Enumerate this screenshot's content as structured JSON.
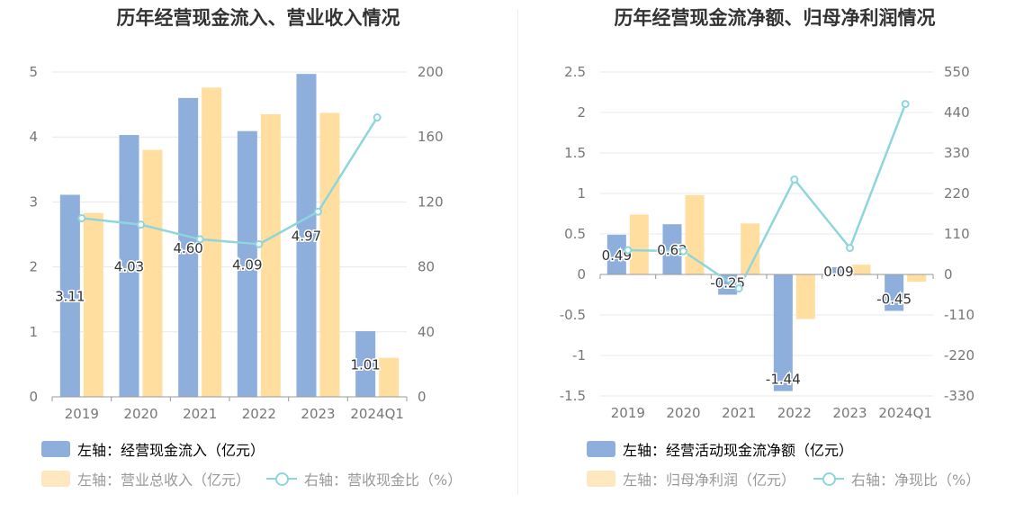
{
  "colors": {
    "bar_primary": "#8eaedb",
    "bar_secondary": "#ffdea0",
    "line": "#8fd5dc",
    "axis_text": "#777777",
    "grid": "#e6e8ee",
    "title": "#333333"
  },
  "chart_data": [
    {
      "type": "bar",
      "title": "历年经营现金流入、营业收入情况",
      "categories": [
        "2019",
        "2020",
        "2021",
        "2022",
        "2023",
        "2024Q1"
      ],
      "left_axis": {
        "ticks": [
          "0",
          "1",
          "2",
          "3",
          "4",
          "5"
        ],
        "ylim": [
          0,
          5
        ]
      },
      "right_axis": {
        "ticks": [
          "0",
          "40",
          "80",
          "120",
          "160",
          "200"
        ],
        "ylim": [
          0,
          200
        ]
      },
      "series": [
        {
          "name": "左轴：经营现金流入（亿元）",
          "axis": "left",
          "kind": "bar",
          "values": [
            3.11,
            4.03,
            4.6,
            4.09,
            4.97,
            1.01
          ],
          "labels": [
            "3.11",
            "4.03",
            "4.60",
            "4.09",
            "4.97",
            "1.01"
          ]
        },
        {
          "name": "左轴：营业总收入（亿元）",
          "axis": "left",
          "kind": "bar",
          "values": [
            2.83,
            3.8,
            4.76,
            4.35,
            4.37,
            0.6
          ]
        },
        {
          "name": "右轴：营收现金比（%）",
          "axis": "right",
          "kind": "line",
          "values": [
            110,
            106,
            97,
            94,
            114,
            172
          ]
        }
      ]
    },
    {
      "type": "bar",
      "title": "历年经营现金流净额、归母净利润情况",
      "categories": [
        "2019",
        "2020",
        "2021",
        "2022",
        "2023",
        "2024Q1"
      ],
      "left_axis": {
        "ticks": [
          "-1.5",
          "-1",
          "-0.5",
          "0",
          "0.5",
          "1",
          "1.5",
          "2",
          "2.5"
        ],
        "ylim": [
          -1.5,
          2.5
        ]
      },
      "right_axis": {
        "ticks": [
          "-330",
          "-220",
          "-110",
          "0",
          "110",
          "220",
          "330",
          "440",
          "550"
        ],
        "ylim": [
          -330,
          550
        ]
      },
      "series": [
        {
          "name": "左轴：经营活动现金流净额（亿元）",
          "axis": "left",
          "kind": "bar",
          "values": [
            0.49,
            0.62,
            -0.25,
            -1.44,
            0.09,
            -0.45
          ],
          "labels": [
            "0.49",
            "0.62",
            "-0.25",
            "-1.44",
            "0.09",
            "-0.45"
          ]
        },
        {
          "name": "左轴：归母净利润（亿元）",
          "axis": "left",
          "kind": "bar",
          "values": [
            0.74,
            0.98,
            0.63,
            -0.55,
            0.12,
            -0.09
          ]
        },
        {
          "name": "右轴：净现比（%）",
          "axis": "right",
          "kind": "line",
          "values": [
            66,
            63,
            -38,
            258,
            72,
            463
          ]
        }
      ]
    }
  ]
}
